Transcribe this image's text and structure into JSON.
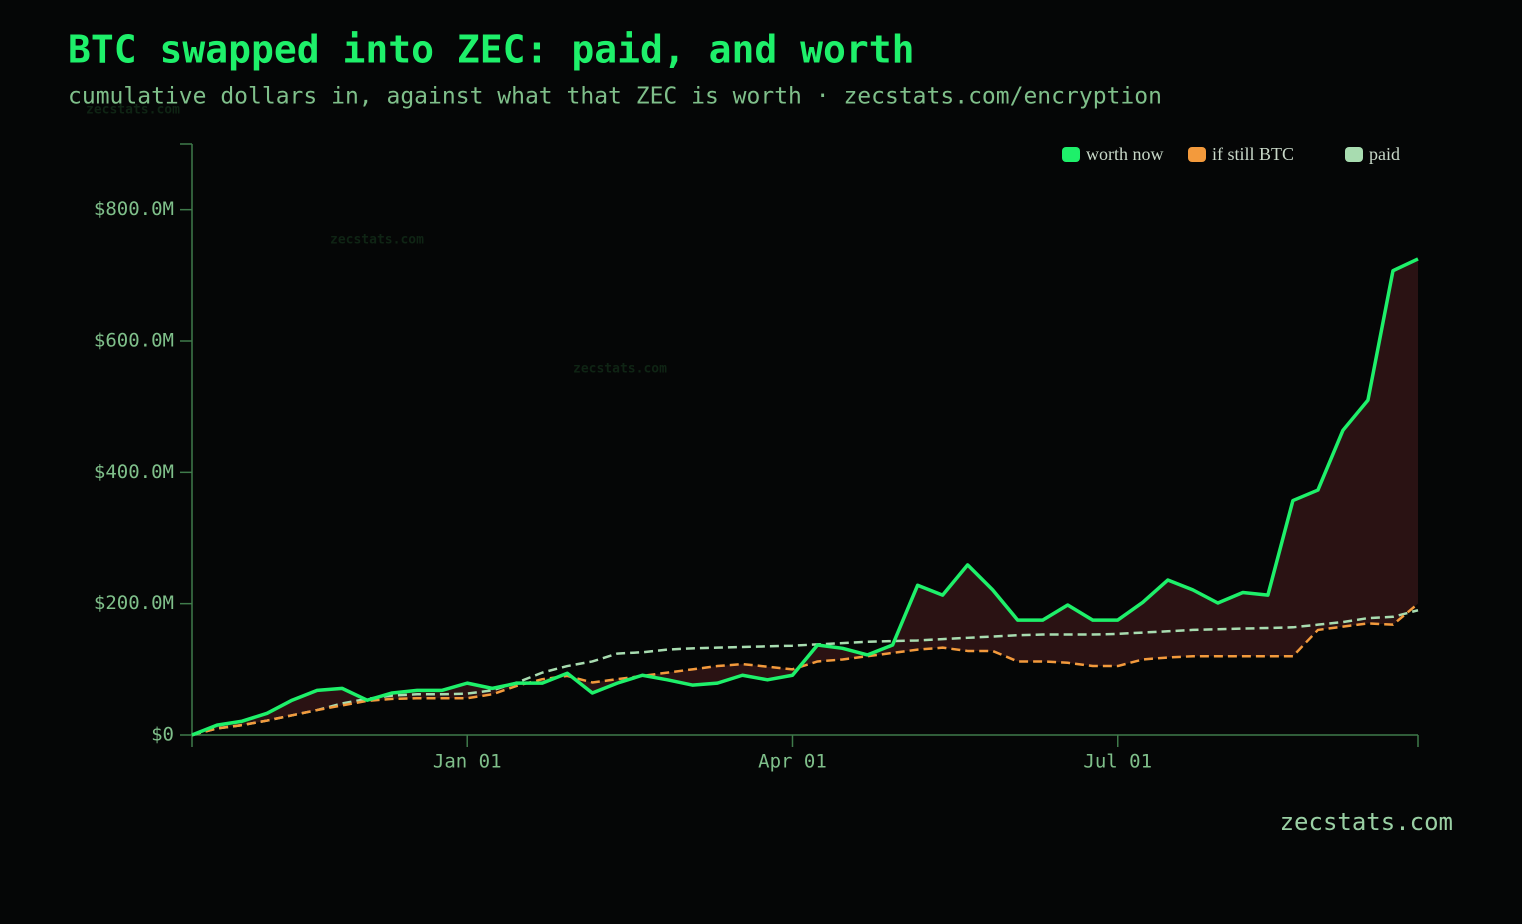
{
  "chart_data": {
    "type": "line",
    "title": "BTC swapped into ZEC: paid, and worth",
    "subtitle": "cumulative dollars in, against what that ZEC is worth · zecstats.com/encryption",
    "watermark": "zecstats.com",
    "categories": [
      null,
      null,
      null,
      null,
      null,
      null,
      null,
      null,
      null,
      null,
      null,
      "Jan 01",
      null,
      null,
      null,
      null,
      null,
      null,
      null,
      null,
      null,
      null,
      null,
      null,
      "Apr 01",
      null,
      null,
      null,
      null,
      null,
      null,
      null,
      null,
      null,
      null,
      null,
      null,
      "Jul 01",
      null,
      null,
      null,
      null,
      null,
      null,
      null,
      null,
      null,
      null,
      null,
      null
    ],
    "series": [
      {
        "name": "worth now",
        "color": "#1ef06a",
        "style": "solid",
        "values": [
          0,
          15000000,
          21000000,
          33000000,
          53000000,
          68000000,
          71000000,
          53000000,
          64000000,
          68000000,
          68000000,
          79000000,
          71000000,
          79000000,
          79000000,
          94000000,
          64000000,
          79000000,
          91000000,
          84000000,
          76000000,
          79000000,
          91000000,
          84000000,
          91000000,
          137000000,
          132000000,
          122000000,
          137000000,
          228000000,
          213000000,
          259000000,
          221000000,
          175000000,
          175000000,
          198000000,
          175000000,
          175000000,
          202000000,
          236000000,
          221000000,
          201000000,
          217000000,
          213000000,
          357000000,
          373000000,
          464000000,
          510000000,
          707000000,
          725000000
        ]
      },
      {
        "name": "if still BTC",
        "color": "#f39a3c",
        "style": "dashed",
        "values": [
          0,
          10000000,
          15000000,
          22000000,
          30000000,
          38000000,
          45000000,
          52000000,
          55000000,
          56000000,
          56000000,
          56000000,
          62000000,
          75000000,
          85000000,
          90000000,
          80000000,
          85000000,
          90000000,
          95000000,
          100000000,
          105000000,
          108000000,
          104000000,
          100000000,
          112000000,
          115000000,
          120000000,
          125000000,
          130000000,
          133000000,
          128000000,
          128000000,
          112000000,
          112000000,
          110000000,
          105000000,
          105000000,
          115000000,
          118000000,
          120000000,
          120000000,
          120000000,
          120000000,
          120000000,
          160000000,
          165000000,
          170000000,
          168000000,
          200000000
        ]
      },
      {
        "name": "paid",
        "color": "#a8dcb0",
        "style": "dashed",
        "values": [
          0,
          10000000,
          15000000,
          22000000,
          30000000,
          38000000,
          48000000,
          55000000,
          60000000,
          62000000,
          62000000,
          63000000,
          68000000,
          80000000,
          95000000,
          105000000,
          112000000,
          124000000,
          126000000,
          130000000,
          132000000,
          133000000,
          134000000,
          135000000,
          136000000,
          138000000,
          140000000,
          142000000,
          143000000,
          144000000,
          146000000,
          148000000,
          150000000,
          152000000,
          153000000,
          153000000,
          153000000,
          154000000,
          156000000,
          158000000,
          160000000,
          161000000,
          162000000,
          163000000,
          164000000,
          168000000,
          172000000,
          178000000,
          180000000,
          190000000
        ]
      }
    ],
    "area_fill": "#2a1213",
    "ylim": [
      0,
      900000000
    ],
    "yticks": [
      {
        "value": 0,
        "label": "$0"
      },
      {
        "value": 200000000,
        "label": "$200.0M"
      },
      {
        "value": 400000000,
        "label": "$400.0M"
      },
      {
        "value": 600000000,
        "label": "$600.0M"
      },
      {
        "value": 800000000,
        "label": "$800.0M"
      }
    ],
    "legend": "top-right"
  }
}
